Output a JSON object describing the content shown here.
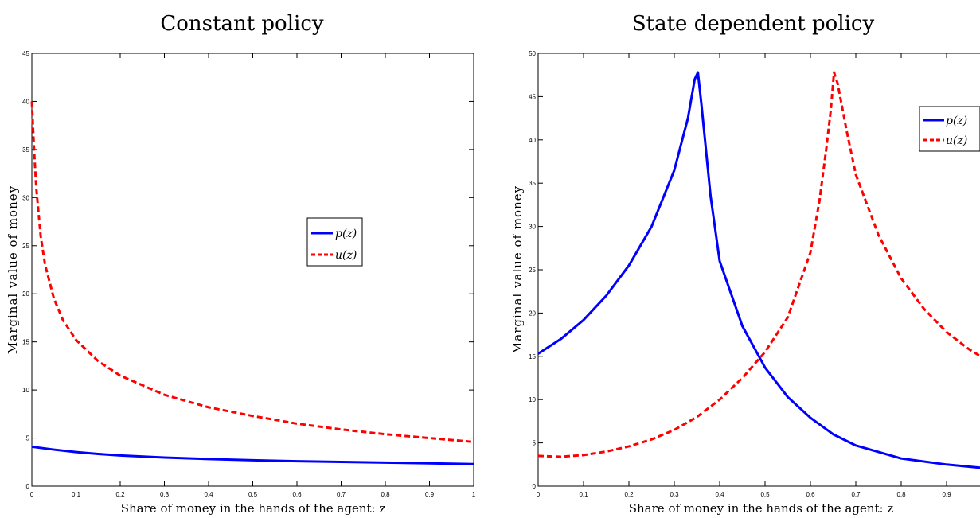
{
  "chart_data": [
    {
      "type": "line",
      "title": "Constant policy",
      "xlabel": "Share of money in the hands of the agent: z",
      "ylabel": "Marginal value of money",
      "xlim": [
        0,
        1
      ],
      "ylim": [
        0,
        45
      ],
      "xticks": [
        "0",
        "0.1",
        "0.2",
        "0.3",
        "0.4",
        "0.5",
        "0.6",
        "0.7",
        "0.8",
        "0.9",
        "1"
      ],
      "yticks": [
        "0",
        "5",
        "10",
        "15",
        "20",
        "25",
        "30",
        "35",
        "40",
        "45"
      ],
      "legend_position": "center-right",
      "series": [
        {
          "name": "p(z)",
          "color": "#0000ff",
          "style": "solid",
          "x": [
            0,
            0.05,
            0.1,
            0.15,
            0.2,
            0.3,
            0.4,
            0.5,
            0.6,
            0.7,
            0.8,
            0.9,
            1.0
          ],
          "y": [
            4.1,
            3.8,
            3.55,
            3.35,
            3.2,
            2.98,
            2.82,
            2.7,
            2.6,
            2.52,
            2.45,
            2.38,
            2.3
          ]
        },
        {
          "name": "u(z)",
          "color": "#ff0000",
          "style": "dashed",
          "x": [
            0,
            0.005,
            0.01,
            0.02,
            0.03,
            0.05,
            0.07,
            0.1,
            0.15,
            0.2,
            0.3,
            0.4,
            0.5,
            0.6,
            0.7,
            0.8,
            0.9,
            1.0
          ],
          "y": [
            40,
            35,
            31,
            26,
            23,
            19.5,
            17.3,
            15.2,
            13.0,
            11.5,
            9.5,
            8.2,
            7.3,
            6.5,
            5.9,
            5.4,
            5.0,
            4.6
          ]
        }
      ]
    },
    {
      "type": "line",
      "title": "State dependent policy",
      "xlabel": "Share of money in the hands of the agent: z",
      "ylabel": "Marginal value of money",
      "xlim": [
        0,
        1
      ],
      "ylim": [
        0,
        50
      ],
      "xticks": [
        "0",
        "0.1",
        "0.2",
        "0.3",
        "0.4",
        "0.5",
        "0.6",
        "0.7",
        "0.8",
        "0.9"
      ],
      "yticks": [
        "0",
        "5",
        "10",
        "15",
        "20",
        "25",
        "30",
        "35",
        "40",
        "45",
        "50"
      ],
      "legend_position": "top-right",
      "series": [
        {
          "name": "p(z)",
          "color": "#0000ff",
          "style": "solid",
          "x": [
            0,
            0.05,
            0.1,
            0.15,
            0.2,
            0.25,
            0.3,
            0.33,
            0.345,
            0.352,
            0.36,
            0.38,
            0.4,
            0.45,
            0.5,
            0.55,
            0.6,
            0.65,
            0.7,
            0.8,
            0.9,
            1.0
          ],
          "y": [
            15.3,
            17.0,
            19.2,
            22.0,
            25.5,
            30.0,
            36.5,
            42.5,
            47.0,
            47.8,
            44.0,
            33.5,
            26.0,
            18.5,
            13.7,
            10.3,
            7.9,
            6.0,
            4.7,
            3.2,
            2.5,
            2.0
          ]
        },
        {
          "name": "u(z)",
          "color": "#ff0000",
          "style": "dashed",
          "x": [
            0,
            0.05,
            0.1,
            0.15,
            0.2,
            0.25,
            0.3,
            0.35,
            0.4,
            0.45,
            0.5,
            0.55,
            0.6,
            0.62,
            0.635,
            0.645,
            0.652,
            0.66,
            0.68,
            0.7,
            0.75,
            0.8,
            0.85,
            0.9,
            0.95,
            1.0
          ],
          "y": [
            3.5,
            3.4,
            3.6,
            4.0,
            4.6,
            5.4,
            6.5,
            8.0,
            10.0,
            12.5,
            15.5,
            19.5,
            27.0,
            33.0,
            39.0,
            43.5,
            47.8,
            46.5,
            41.0,
            36.0,
            29.0,
            24.0,
            20.5,
            17.8,
            15.8,
            14.2
          ]
        }
      ]
    }
  ]
}
